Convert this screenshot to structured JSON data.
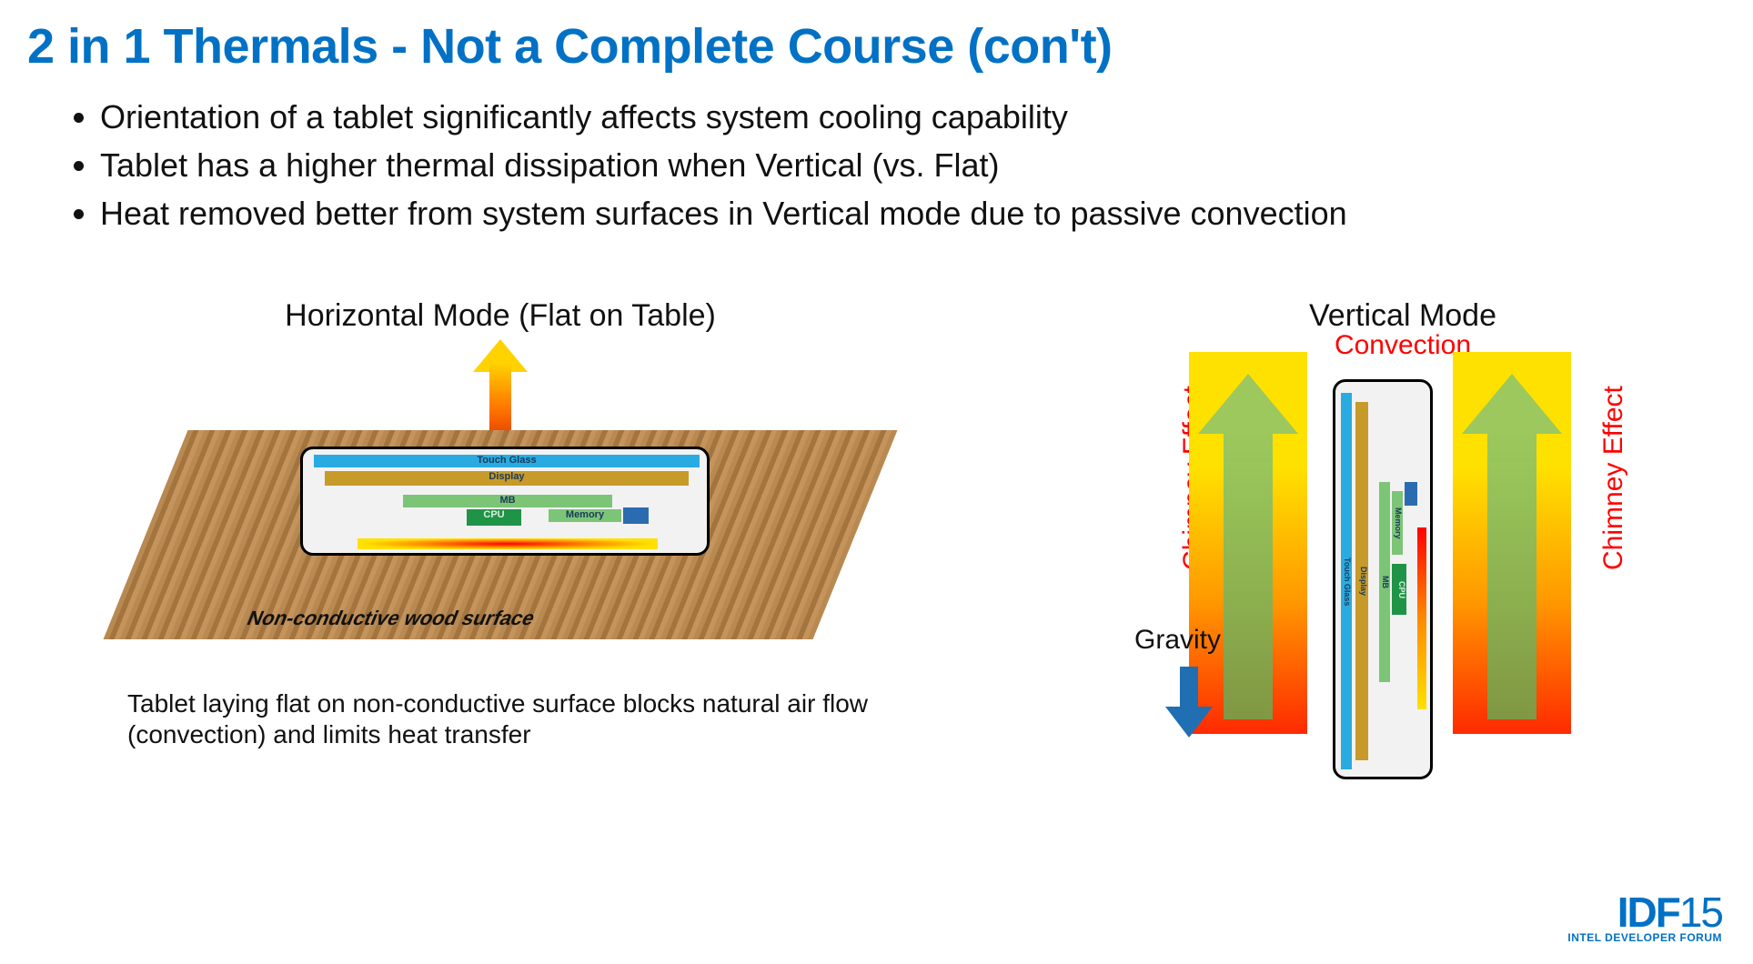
{
  "colors": {
    "title": "#0071c5",
    "text": "#111111",
    "accent_red": "#ff0000",
    "blue_arrow": "#1f6fb2",
    "logo": "#0071c5"
  },
  "title": "2 in 1 Thermals - Not a Complete Course (con't)",
  "bullets": [
    "Orientation of a tablet significantly affects system cooling capability",
    "Tablet has a higher thermal dissipation when Vertical (vs. Flat)",
    "Heat removed better from system surfaces in Vertical mode due to passive convection"
  ],
  "left": {
    "heading": "Horizontal Mode (Flat on Table)",
    "surface_label": "Non-conductive wood surface",
    "layers": {
      "touch_glass": "Touch Glass",
      "display": "Display",
      "mb": "MB",
      "cpu": "CPU",
      "memory": "Memory"
    },
    "caption": "Tablet laying flat on non-conductive surface blocks natural air flow (convection) and limits heat transfer"
  },
  "right": {
    "heading": "Vertical Mode",
    "convection": "Convection",
    "chimney": "Chimney Effect",
    "gravity": "Gravity",
    "layers": {
      "touch_glass": "Touch Glass",
      "display": "Display",
      "mb": "MB",
      "cpu": "CPU",
      "memory": "Memory"
    }
  },
  "logo": {
    "idf": "IDF",
    "year": "15",
    "sub": "INTEL DEVELOPER FORUM"
  }
}
